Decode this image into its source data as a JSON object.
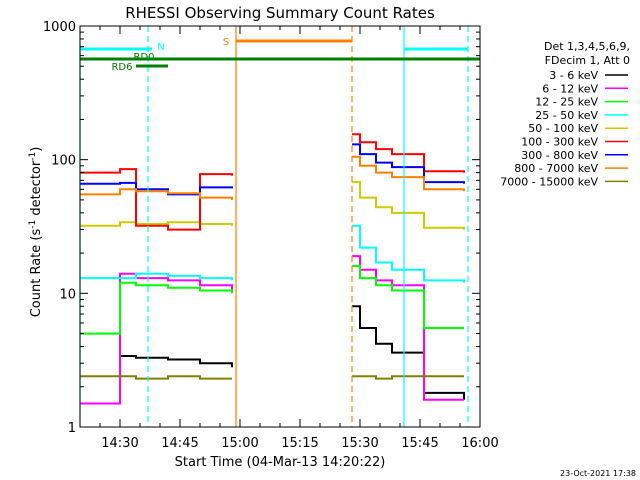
{
  "chart_data": {
    "type": "line",
    "title": "RHESSI Observing Summary Count Rates",
    "xlabel": "Start Time (04-Mar-13 14:20:22)",
    "ylabel": "Count Rate (s^-1 detector^-1)",
    "yscale": "log",
    "ylim": [
      1,
      1000
    ],
    "xlim": [
      "14:20",
      "16:00"
    ],
    "x_ticks": [
      "14:30",
      "14:45",
      "15:00",
      "15:15",
      "15:30",
      "15:45",
      "16:00"
    ],
    "y_ticks": [
      "1",
      "10",
      "100",
      "1000"
    ],
    "legend_header": [
      "Det 1,3,4,5,6,9,",
      "FDecim 1, Att 0"
    ],
    "timestamp": "23-Oct-2021 17:38",
    "data_gap": [
      "14:59",
      "15:28"
    ],
    "series": [
      {
        "name": "3 - 6 keV",
        "color": "#000000",
        "x": [
          "14:20",
          "14:30",
          "14:34",
          "14:42",
          "14:50",
          "14:58",
          "15:28",
          "15:30",
          "15:34",
          "15:38",
          "15:46",
          "15:56"
        ],
        "values": [
          1.5,
          3.4,
          3.3,
          3.2,
          3.0,
          2.8,
          8.0,
          5.5,
          4.2,
          3.6,
          1.8,
          1.6
        ]
      },
      {
        "name": "6 - 12 keV",
        "color": "#ff00ff",
        "x": [
          "14:20",
          "14:30",
          "14:34",
          "14:42",
          "14:50",
          "14:58",
          "15:28",
          "15:30",
          "15:34",
          "15:38",
          "15:46",
          "15:56"
        ],
        "values": [
          1.5,
          14.0,
          13.0,
          12.5,
          11.5,
          10.5,
          19.0,
          15.0,
          12.5,
          11.5,
          1.6,
          1.6
        ]
      },
      {
        "name": "12 - 25 keV",
        "color": "#00ff00",
        "x": [
          "14:20",
          "14:30",
          "14:34",
          "14:42",
          "14:50",
          "14:58",
          "15:28",
          "15:30",
          "15:34",
          "15:38",
          "15:46",
          "15:56"
        ],
        "values": [
          5.0,
          12.0,
          11.5,
          11.0,
          10.5,
          10.0,
          16.0,
          13.0,
          11.5,
          10.5,
          5.5,
          5.5
        ]
      },
      {
        "name": "25 - 50 keV",
        "color": "#00ffff",
        "x": [
          "14:20",
          "14:30",
          "14:34",
          "14:42",
          "14:50",
          "14:58",
          "15:28",
          "15:30",
          "15:34",
          "15:38",
          "15:46",
          "15:56"
        ],
        "values": [
          13.0,
          13.0,
          14.0,
          13.5,
          13.0,
          12.5,
          32.0,
          22.0,
          17.0,
          15.0,
          12.5,
          12.0
        ]
      },
      {
        "name": "50 - 100 keV",
        "color": "#cccc00",
        "x": [
          "14:20",
          "14:30",
          "14:34",
          "14:42",
          "14:50",
          "14:58",
          "15:28",
          "15:30",
          "15:34",
          "15:38",
          "15:46",
          "15:56"
        ],
        "values": [
          32.0,
          34.0,
          33.0,
          34.0,
          33.0,
          32.0,
          68.0,
          52.0,
          44.0,
          40.0,
          31.0,
          30.0
        ]
      },
      {
        "name": "100 - 300 keV",
        "color": "#ff0000",
        "x": [
          "14:20",
          "14:30",
          "14:34",
          "14:42",
          "14:50",
          "14:58",
          "15:28",
          "15:30",
          "15:34",
          "15:38",
          "15:46",
          "15:56"
        ],
        "values": [
          80.0,
          85.0,
          32.0,
          30.0,
          78.0,
          76.0,
          155.0,
          135.0,
          120.0,
          110.0,
          82.0,
          80.0
        ]
      },
      {
        "name": "300 - 800 keV",
        "color": "#0000ff",
        "x": [
          "14:20",
          "14:30",
          "14:34",
          "14:42",
          "14:50",
          "14:58",
          "15:28",
          "15:30",
          "15:34",
          "15:38",
          "15:46",
          "15:56"
        ],
        "values": [
          66.0,
          67.0,
          60.0,
          55.0,
          62.0,
          61.0,
          130.0,
          110.0,
          95.0,
          88.0,
          68.0,
          66.0
        ]
      },
      {
        "name": "800 - 7000 keV",
        "color": "#ff8000",
        "x": [
          "14:20",
          "14:30",
          "14:34",
          "14:42",
          "14:50",
          "14:58",
          "15:28",
          "15:30",
          "15:34",
          "15:38",
          "15:46",
          "15:56"
        ],
        "values": [
          55.0,
          60.0,
          58.0,
          56.0,
          52.0,
          50.0,
          105.0,
          90.0,
          80.0,
          74.0,
          60.0,
          58.0
        ]
      },
      {
        "name": "7000 - 15000 keV",
        "color": "#808000",
        "x": [
          "14:20",
          "14:30",
          "14:34",
          "14:42",
          "14:50",
          "14:58",
          "15:28",
          "15:30",
          "15:34",
          "15:38",
          "15:46",
          "15:56"
        ],
        "values": [
          2.4,
          2.4,
          2.3,
          2.4,
          2.3,
          2.3,
          2.4,
          2.4,
          2.3,
          2.4,
          2.4,
          2.4
        ]
      }
    ],
    "flag_bars": [
      {
        "label": "N",
        "color": "#00ffff",
        "segments": [
          [
            "14:20",
            "14:38"
          ],
          [
            "15:41",
            "15:57"
          ]
        ],
        "level": 1
      },
      {
        "label": "S",
        "color": "#ff8000",
        "segments": [
          [
            "14:59",
            "15:28"
          ]
        ],
        "level": 2
      },
      {
        "label": "RD0",
        "color": "#008000",
        "segments": [
          [
            "14:20",
            "16:00"
          ]
        ],
        "level": 3
      },
      {
        "label": "RD6",
        "color": "#008000",
        "segments": [
          [
            "14:34",
            "14:42"
          ]
        ],
        "level": 4
      }
    ],
    "vlines": [
      {
        "x": "14:20",
        "color": "#00ffff",
        "style": "solid"
      },
      {
        "x": "14:37",
        "color": "#00ffff",
        "style": "dashed"
      },
      {
        "x": "14:59",
        "color": "#ff8000",
        "style": "solid"
      },
      {
        "x": "15:28",
        "color": "#ff8000",
        "style": "dashed"
      },
      {
        "x": "15:41",
        "color": "#00ffff",
        "style": "solid"
      },
      {
        "x": "15:57",
        "color": "#00ffff",
        "style": "dashed"
      }
    ]
  }
}
